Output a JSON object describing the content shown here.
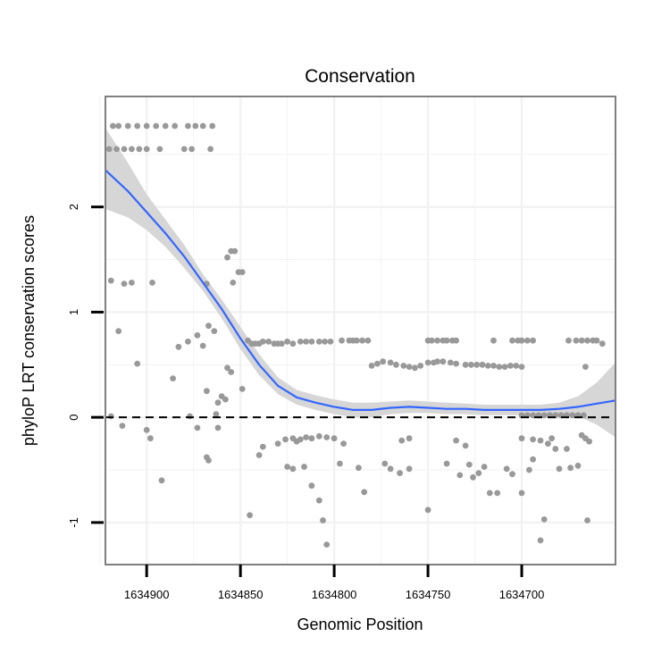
{
  "chart_data": {
    "type": "scatter",
    "title": "Conservation",
    "xlabel": "Genomic Position",
    "ylabel": "phyloP LRT conservation scores",
    "x_reversed": true,
    "xlim": [
      1634922,
      1634650
    ],
    "ylim": [
      -1.4,
      3.05
    ],
    "x_ticks": [
      1634900,
      1634850,
      1634800,
      1634750,
      1634700
    ],
    "x_tick_labels": [
      "1634900",
      "1634850",
      "1634800",
      "1634750",
      "1634700"
    ],
    "y_ticks": [
      -1,
      0,
      1,
      2
    ],
    "y_tick_labels": [
      "-1",
      "0",
      "1",
      "2"
    ],
    "reference_line": {
      "y": 0,
      "style": "dashed",
      "color": "#000000"
    },
    "colors": {
      "points": "#999999",
      "smooth": "#3366FF",
      "ribbon": "#d4d4d4",
      "panel_border": "#7f7f7f",
      "grid": "#f2f2f2"
    },
    "points": [
      [
        1634918,
        2.77
      ],
      [
        1634915,
        2.77
      ],
      [
        1634910,
        2.77
      ],
      [
        1634905,
        2.77
      ],
      [
        1634900,
        2.77
      ],
      [
        1634895,
        2.77
      ],
      [
        1634890,
        2.77
      ],
      [
        1634885,
        2.77
      ],
      [
        1634878,
        2.77
      ],
      [
        1634874,
        2.77
      ],
      [
        1634870,
        2.77
      ],
      [
        1634865,
        2.77
      ],
      [
        1634920,
        2.55
      ],
      [
        1634916,
        2.55
      ],
      [
        1634912,
        2.55
      ],
      [
        1634908,
        2.55
      ],
      [
        1634904,
        2.55
      ],
      [
        1634900,
        2.55
      ],
      [
        1634893,
        2.55
      ],
      [
        1634880,
        2.55
      ],
      [
        1634876,
        2.55
      ],
      [
        1634866,
        2.55
      ],
      [
        1634919,
        1.3
      ],
      [
        1634912,
        1.27
      ],
      [
        1634908,
        1.28
      ],
      [
        1634897,
        1.28
      ],
      [
        1634868,
        1.27
      ],
      [
        1634855,
        1.58
      ],
      [
        1634853,
        1.58
      ],
      [
        1634857,
        1.52
      ],
      [
        1634851,
        1.38
      ],
      [
        1634849,
        1.38
      ],
      [
        1634854,
        1.28
      ],
      [
        1634915,
        0.82
      ],
      [
        1634873,
        0.78
      ],
      [
        1634878,
        0.72
      ],
      [
        1634883,
        0.67
      ],
      [
        1634867,
        0.87
      ],
      [
        1634864,
        0.82
      ],
      [
        1634870,
        0.68
      ],
      [
        1634846,
        0.73
      ],
      [
        1634844,
        0.7
      ],
      [
        1634842,
        0.7
      ],
      [
        1634840,
        0.7
      ],
      [
        1634838,
        0.72
      ],
      [
        1634835,
        0.72
      ],
      [
        1634832,
        0.7
      ],
      [
        1634830,
        0.7
      ],
      [
        1634828,
        0.7
      ],
      [
        1634825,
        0.72
      ],
      [
        1634822,
        0.7
      ],
      [
        1634818,
        0.72
      ],
      [
        1634815,
        0.72
      ],
      [
        1634812,
        0.72
      ],
      [
        1634808,
        0.72
      ],
      [
        1634805,
        0.72
      ],
      [
        1634802,
        0.72
      ],
      [
        1634796,
        0.73
      ],
      [
        1634792,
        0.73
      ],
      [
        1634790,
        0.73
      ],
      [
        1634788,
        0.73
      ],
      [
        1634785,
        0.73
      ],
      [
        1634782,
        0.73
      ],
      [
        1634750,
        0.73
      ],
      [
        1634748,
        0.73
      ],
      [
        1634745,
        0.73
      ],
      [
        1634742,
        0.73
      ],
      [
        1634740,
        0.73
      ],
      [
        1634737,
        0.73
      ],
      [
        1634735,
        0.73
      ],
      [
        1634715,
        0.73
      ],
      [
        1634705,
        0.73
      ],
      [
        1634702,
        0.73
      ],
      [
        1634700,
        0.73
      ],
      [
        1634697,
        0.73
      ],
      [
        1634694,
        0.73
      ],
      [
        1634675,
        0.73
      ],
      [
        1634671,
        0.73
      ],
      [
        1634668,
        0.73
      ],
      [
        1634665,
        0.73
      ],
      [
        1634662,
        0.73
      ],
      [
        1634660,
        0.73
      ],
      [
        1634657,
        0.7
      ],
      [
        1634780,
        0.49
      ],
      [
        1634777,
        0.51
      ],
      [
        1634774,
        0.53
      ],
      [
        1634770,
        0.52
      ],
      [
        1634767,
        0.5
      ],
      [
        1634763,
        0.49
      ],
      [
        1634760,
        0.48
      ],
      [
        1634757,
        0.47
      ],
      [
        1634754,
        0.49
      ],
      [
        1634750,
        0.52
      ],
      [
        1634747,
        0.52
      ],
      [
        1634745,
        0.53
      ],
      [
        1634742,
        0.53
      ],
      [
        1634738,
        0.52
      ],
      [
        1634735,
        0.51
      ],
      [
        1634730,
        0.5
      ],
      [
        1634727,
        0.5
      ],
      [
        1634724,
        0.5
      ],
      [
        1634721,
        0.5
      ],
      [
        1634718,
        0.49
      ],
      [
        1634715,
        0.49
      ],
      [
        1634712,
        0.48
      ],
      [
        1634709,
        0.48
      ],
      [
        1634706,
        0.49
      ],
      [
        1634703,
        0.49
      ],
      [
        1634700,
        0.48
      ],
      [
        1634666,
        0.48
      ],
      [
        1634905,
        0.51
      ],
      [
        1634886,
        0.37
      ],
      [
        1634868,
        0.25
      ],
      [
        1634857,
        0.47
      ],
      [
        1634855,
        0.43
      ],
      [
        1634849,
        0.27
      ],
      [
        1634860,
        0.2
      ],
      [
        1634862,
        0.14
      ],
      [
        1634858,
        0.17
      ],
      [
        1634863,
        0.03
      ],
      [
        1634877,
        0.01
      ],
      [
        1634919,
        0.01
      ],
      [
        1634700,
        0.02
      ],
      [
        1634697,
        0.02
      ],
      [
        1634694,
        0.02
      ],
      [
        1634691,
        0.02
      ],
      [
        1634688,
        0.02
      ],
      [
        1634685,
        0.02
      ],
      [
        1634682,
        0.02
      ],
      [
        1634679,
        0.02
      ],
      [
        1634676,
        0.02
      ],
      [
        1634673,
        0.02
      ],
      [
        1634670,
        0.02
      ],
      [
        1634667,
        0.02
      ],
      [
        1634913,
        -0.08
      ],
      [
        1634900,
        -0.12
      ],
      [
        1634898,
        -0.2
      ],
      [
        1634873,
        -0.1
      ],
      [
        1634862,
        -0.1
      ],
      [
        1634892,
        -0.6
      ],
      [
        1634868,
        -0.38
      ],
      [
        1634867,
        -0.41
      ],
      [
        1634840,
        -0.36
      ],
      [
        1634838,
        -0.28
      ],
      [
        1634830,
        -0.25
      ],
      [
        1634826,
        -0.21
      ],
      [
        1634822,
        -0.2
      ],
      [
        1634820,
        -0.23
      ],
      [
        1634818,
        -0.21
      ],
      [
        1634815,
        -0.19
      ],
      [
        1634812,
        -0.2
      ],
      [
        1634808,
        -0.18
      ],
      [
        1634804,
        -0.19
      ],
      [
        1634800,
        -0.2
      ],
      [
        1634795,
        -0.25
      ],
      [
        1634825,
        -0.47
      ],
      [
        1634822,
        -0.49
      ],
      [
        1634816,
        -0.47
      ],
      [
        1634812,
        -0.65
      ],
      [
        1634808,
        -0.79
      ],
      [
        1634797,
        -0.44
      ],
      [
        1634787,
        -0.48
      ],
      [
        1634784,
        -0.71
      ],
      [
        1634773,
        -0.44
      ],
      [
        1634770,
        -0.49
      ],
      [
        1634765,
        -0.53
      ],
      [
        1634760,
        -0.49
      ],
      [
        1634740,
        -0.44
      ],
      [
        1634733,
        -0.55
      ],
      [
        1634728,
        -0.45
      ],
      [
        1634764,
        -0.22
      ],
      [
        1634760,
        -0.2
      ],
      [
        1634735,
        -0.22
      ],
      [
        1634730,
        -0.27
      ],
      [
        1634690,
        -0.22
      ],
      [
        1634686,
        -0.25
      ],
      [
        1634694,
        -0.21
      ],
      [
        1634726,
        -0.57
      ],
      [
        1634723,
        -0.53
      ],
      [
        1634720,
        -0.47
      ],
      [
        1634717,
        -0.72
      ],
      [
        1634713,
        -0.72
      ],
      [
        1634708,
        -0.49
      ],
      [
        1634705,
        -0.54
      ],
      [
        1634700,
        -0.72
      ],
      [
        1634696,
        -0.5
      ],
      [
        1634694,
        -0.4
      ],
      [
        1634684,
        -0.2
      ],
      [
        1634682,
        -0.3
      ],
      [
        1634680,
        -0.49
      ],
      [
        1634676,
        -0.3
      ],
      [
        1634674,
        -0.48
      ],
      [
        1634670,
        -0.46
      ],
      [
        1634666,
        -0.2
      ],
      [
        1634664,
        -0.23
      ],
      [
        1634845,
        -0.93
      ],
      [
        1634806,
        -0.98
      ],
      [
        1634804,
        -1.21
      ],
      [
        1634750,
        -0.88
      ],
      [
        1634688,
        -0.97
      ],
      [
        1634690,
        -1.17
      ],
      [
        1634665,
        -0.98
      ],
      [
        1634668,
        -0.17
      ],
      [
        1634700,
        -0.2
      ]
    ],
    "smooth": {
      "method": "loess",
      "x": [
        1634922,
        1634910,
        1634900,
        1634890,
        1634880,
        1634870,
        1634860,
        1634850,
        1634840,
        1634830,
        1634820,
        1634810,
        1634800,
        1634790,
        1634780,
        1634770,
        1634760,
        1634750,
        1634740,
        1634730,
        1634720,
        1634710,
        1634700,
        1634690,
        1634680,
        1634670,
        1634660,
        1634650
      ],
      "y": [
        2.35,
        2.15,
        1.95,
        1.75,
        1.53,
        1.28,
        1.03,
        0.75,
        0.5,
        0.3,
        0.19,
        0.14,
        0.1,
        0.07,
        0.07,
        0.09,
        0.1,
        0.09,
        0.08,
        0.08,
        0.07,
        0.07,
        0.07,
        0.07,
        0.08,
        0.1,
        0.13,
        0.16
      ],
      "lower": [
        1.98,
        1.9,
        1.78,
        1.62,
        1.42,
        1.2,
        0.94,
        0.65,
        0.4,
        0.22,
        0.12,
        0.07,
        0.03,
        0.0,
        0.0,
        0.03,
        0.04,
        0.04,
        0.03,
        0.03,
        0.02,
        0.02,
        0.02,
        0.02,
        0.02,
        0.01,
        -0.07,
        -0.19
      ],
      "upper": [
        2.75,
        2.42,
        2.12,
        1.88,
        1.64,
        1.36,
        1.12,
        0.86,
        0.6,
        0.38,
        0.26,
        0.21,
        0.17,
        0.14,
        0.14,
        0.15,
        0.16,
        0.15,
        0.14,
        0.13,
        0.12,
        0.12,
        0.12,
        0.12,
        0.14,
        0.2,
        0.33,
        0.52
      ]
    }
  }
}
